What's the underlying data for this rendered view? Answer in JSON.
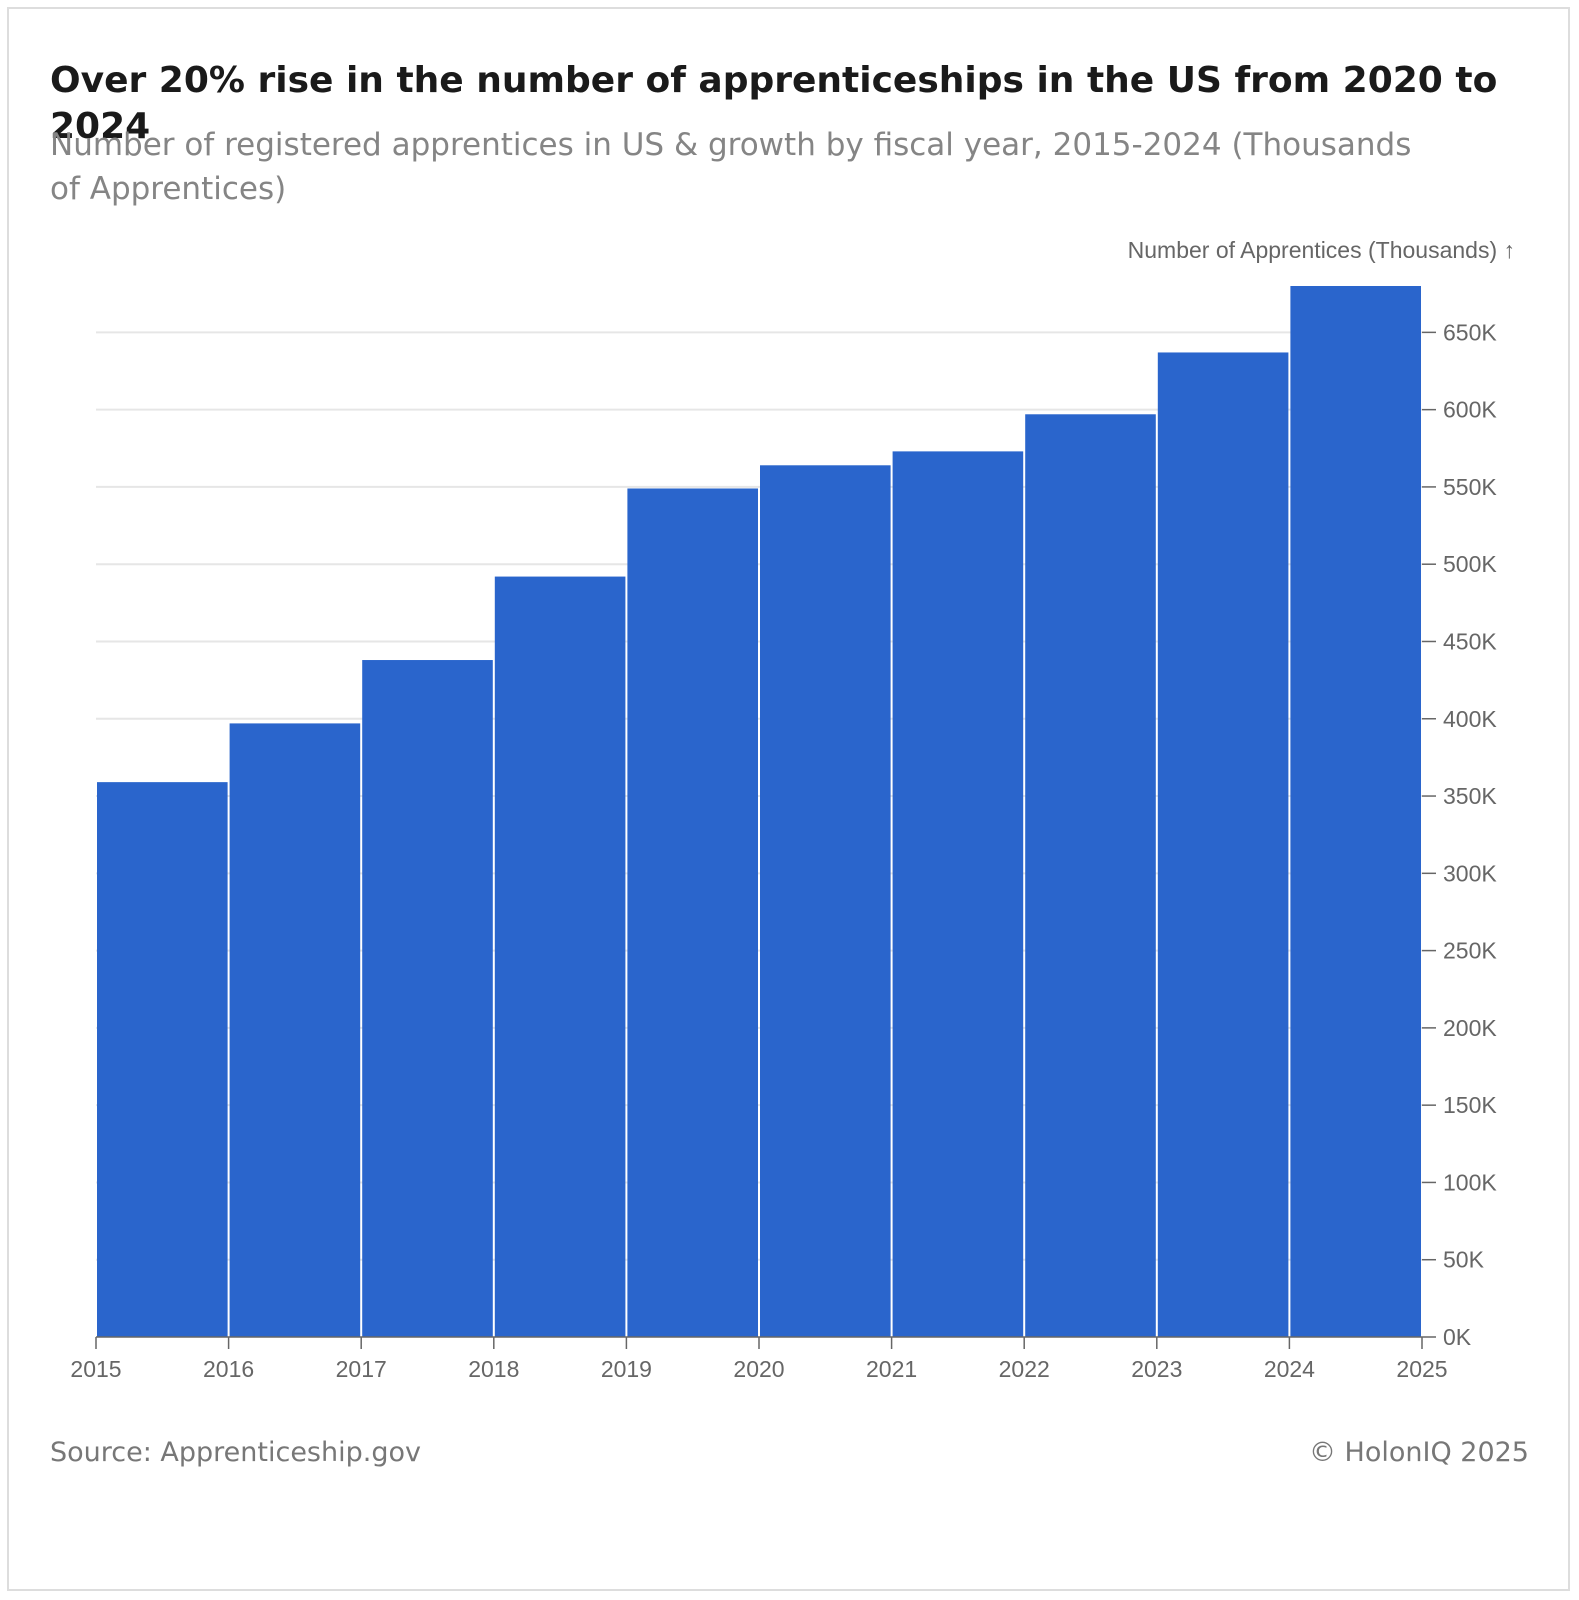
{
  "chart_data": {
    "type": "bar",
    "title": "Over 20% rise in the number of apprenticeships in the US from 2020 to 2024",
    "subtitle": "Number of registered apprentices in US & growth by fiscal year, 2015-2024 (Thousands of Apprentices)",
    "ylabel": "Number of Apprentices (Thousands) ↑",
    "xlabel": "",
    "categories": [
      "2015",
      "2016",
      "2017",
      "2018",
      "2019",
      "2020",
      "2021",
      "2022",
      "2023",
      "2024"
    ],
    "x_ticks": [
      "2015",
      "2016",
      "2017",
      "2018",
      "2019",
      "2020",
      "2021",
      "2022",
      "2023",
      "2024",
      "2025"
    ],
    "values": [
      359,
      397,
      438,
      492,
      549,
      564,
      573,
      597,
      637,
      680
    ],
    "ylim": [
      0,
      680
    ],
    "y_ticks": [
      0,
      50,
      100,
      150,
      200,
      250,
      300,
      350,
      400,
      450,
      500,
      550,
      600,
      650
    ],
    "y_tick_labels": [
      "0K",
      "50K",
      "100K",
      "150K",
      "200K",
      "250K",
      "300K",
      "350K",
      "400K",
      "450K",
      "500K",
      "550K",
      "600K",
      "650K"
    ],
    "grid": true,
    "colors": {
      "bar": "#2a65cc",
      "grid": "#e6e6e6",
      "axis": "#666666"
    }
  },
  "footer": {
    "source": "Source: Apprenticeship.gov",
    "copyright": "© HolonIQ 2025"
  }
}
